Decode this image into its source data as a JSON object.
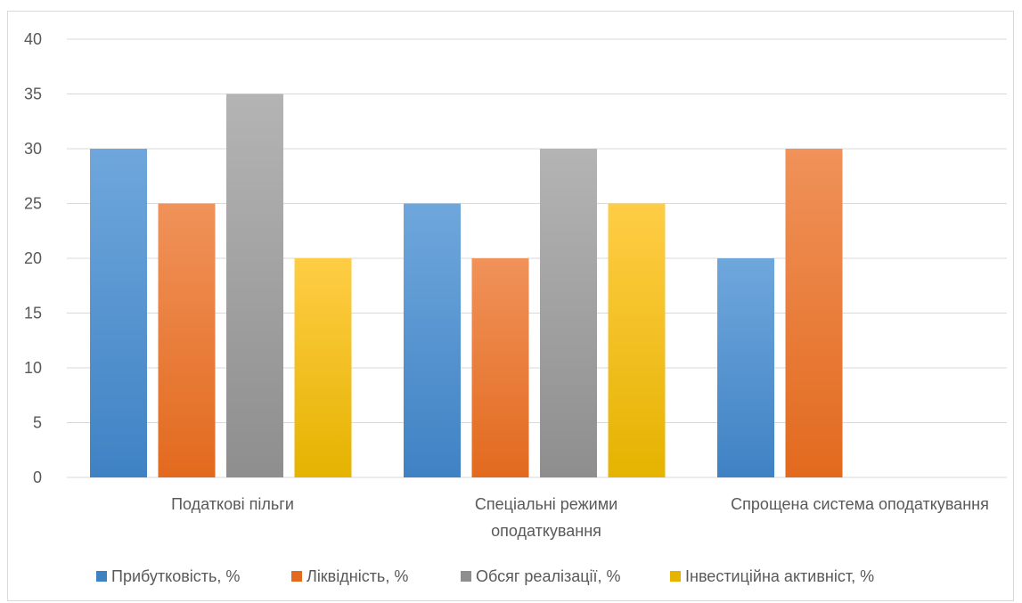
{
  "chart_data": {
    "type": "bar",
    "categories": [
      [
        "Податкові пільги"
      ],
      [
        "Спеціальні режими",
        "оподаткування"
      ],
      [
        "Спрощена система оподаткування"
      ]
    ],
    "series": [
      {
        "name": "Прибутковість, %",
        "values": [
          30,
          25,
          20
        ],
        "color_top": "#6fa7dc",
        "color_bottom": "#3f82c4"
      },
      {
        "name": "Ліквідність, %",
        "values": [
          25,
          20,
          30
        ],
        "color_top": "#f0925a",
        "color_bottom": "#e26a1e"
      },
      {
        "name": "Обсяг реалізації, %",
        "values": [
          35,
          30,
          null
        ],
        "color_top": "#b4b4b4",
        "color_bottom": "#8e8e8e"
      },
      {
        "name": "Інвестиційна активніст, %",
        "values": [
          20,
          25,
          null
        ],
        "color_top": "#ffcd45",
        "color_bottom": "#e5b300"
      }
    ],
    "y_ticks": [
      0,
      5,
      10,
      15,
      20,
      25,
      30,
      35,
      40
    ],
    "ylim": [
      0,
      40
    ],
    "grid": true,
    "gridline_color": "#d9d9d9",
    "legend_position": "bottom"
  }
}
